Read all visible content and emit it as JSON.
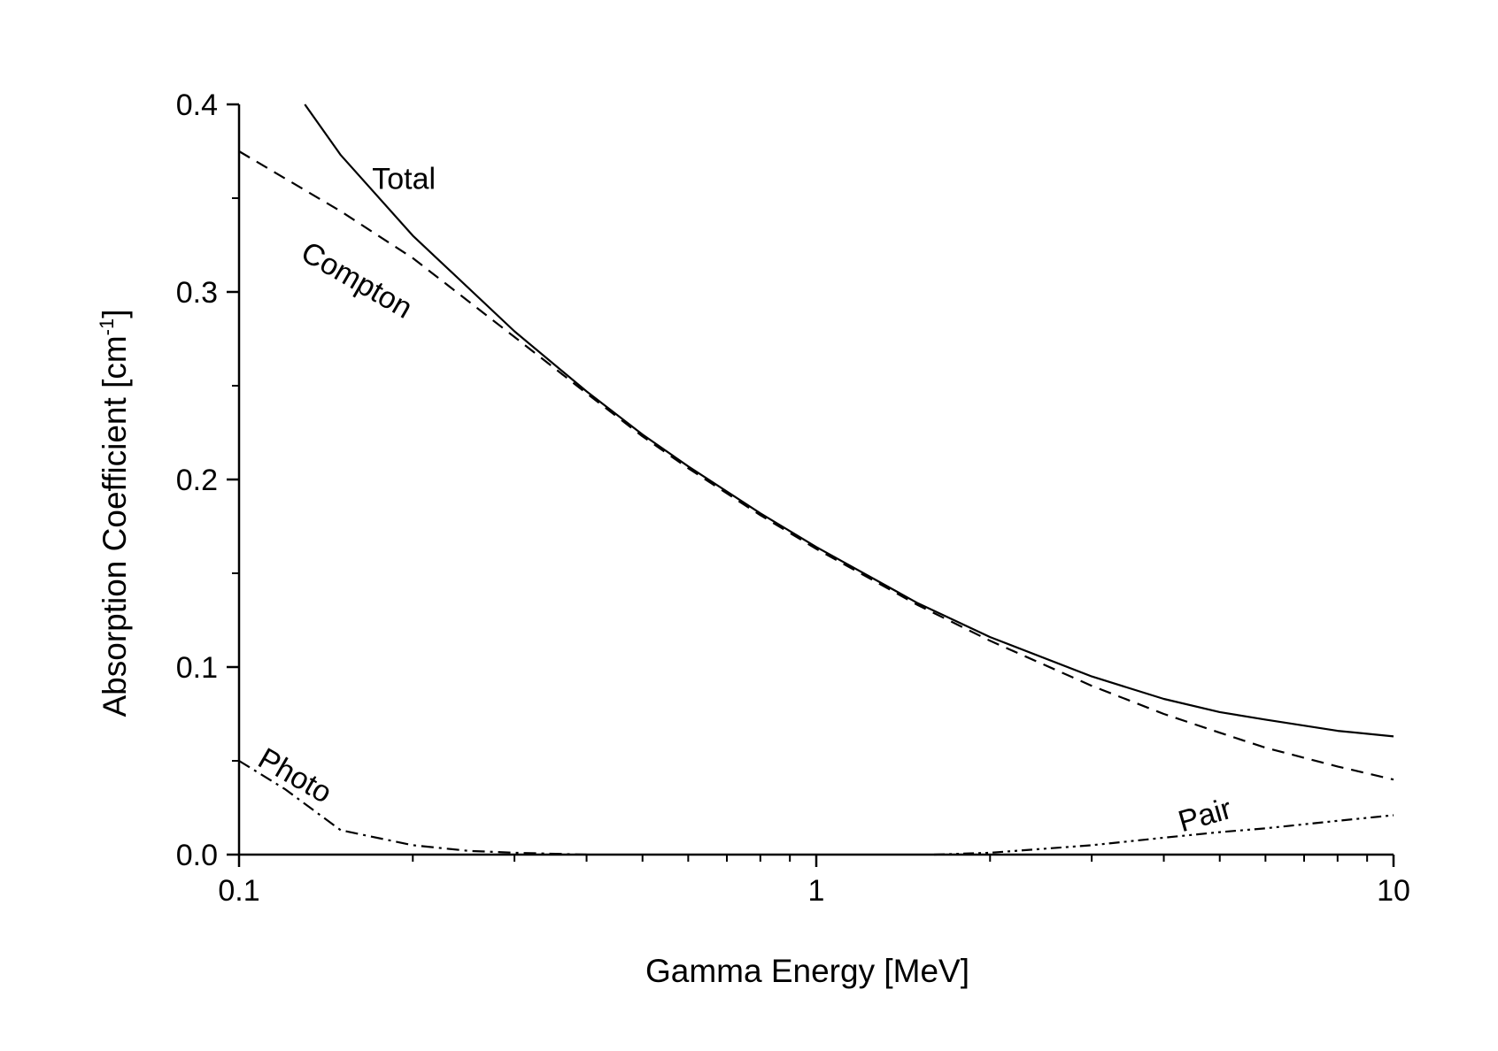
{
  "chart_data": {
    "type": "line",
    "xlabel": "Gamma Energy [MeV]",
    "ylabel": "Absorption Coefficient [cm",
    "ylabel_superscript": "-1",
    "ylabel_close": "]",
    "xscale": "log",
    "xlim": [
      0.1,
      10
    ],
    "ylim": [
      0,
      0.4
    ],
    "x_ticks": [
      0.1,
      1,
      10
    ],
    "x_tick_labels": [
      "0.1",
      "1",
      "10"
    ],
    "y_ticks": [
      0.0,
      0.1,
      0.2,
      0.3,
      0.4
    ],
    "y_tick_labels": [
      "0.0",
      "0.1",
      "0.2",
      "0.3",
      "0.4"
    ],
    "grid": false,
    "legend": "none",
    "series": [
      {
        "name": "Total",
        "style": "solid",
        "x": [
          0.13,
          0.15,
          0.2,
          0.3,
          0.4,
          0.5,
          0.6,
          0.8,
          1,
          1.5,
          2,
          3,
          4,
          5,
          6,
          8,
          10
        ],
        "y": [
          0.4,
          0.373,
          0.33,
          0.279,
          0.247,
          0.224,
          0.207,
          0.182,
          0.164,
          0.134,
          0.116,
          0.095,
          0.083,
          0.076,
          0.072,
          0.066,
          0.063
        ]
      },
      {
        "name": "Compton",
        "style": "dashed",
        "x": [
          0.1,
          0.15,
          0.2,
          0.3,
          0.4,
          0.5,
          0.6,
          0.8,
          1,
          1.5,
          2,
          3,
          4,
          5,
          6,
          8,
          10
        ],
        "y": [
          0.375,
          0.343,
          0.318,
          0.276,
          0.246,
          0.223,
          0.206,
          0.181,
          0.163,
          0.133,
          0.114,
          0.09,
          0.075,
          0.065,
          0.057,
          0.047,
          0.04
        ]
      },
      {
        "name": "Photo",
        "style": "dash-dot",
        "x": [
          0.1,
          0.12,
          0.15,
          0.2,
          0.25,
          0.3,
          0.4
        ],
        "y": [
          0.05,
          0.035,
          0.013,
          0.005,
          0.002,
          0.001,
          0.0
        ]
      },
      {
        "name": "Pair",
        "style": "dash-dot-dot",
        "x": [
          1.6,
          2,
          3,
          4,
          5,
          6,
          8,
          10
        ],
        "y": [
          0.0,
          0.001,
          0.005,
          0.009,
          0.012,
          0.014,
          0.018,
          0.021
        ]
      }
    ]
  }
}
